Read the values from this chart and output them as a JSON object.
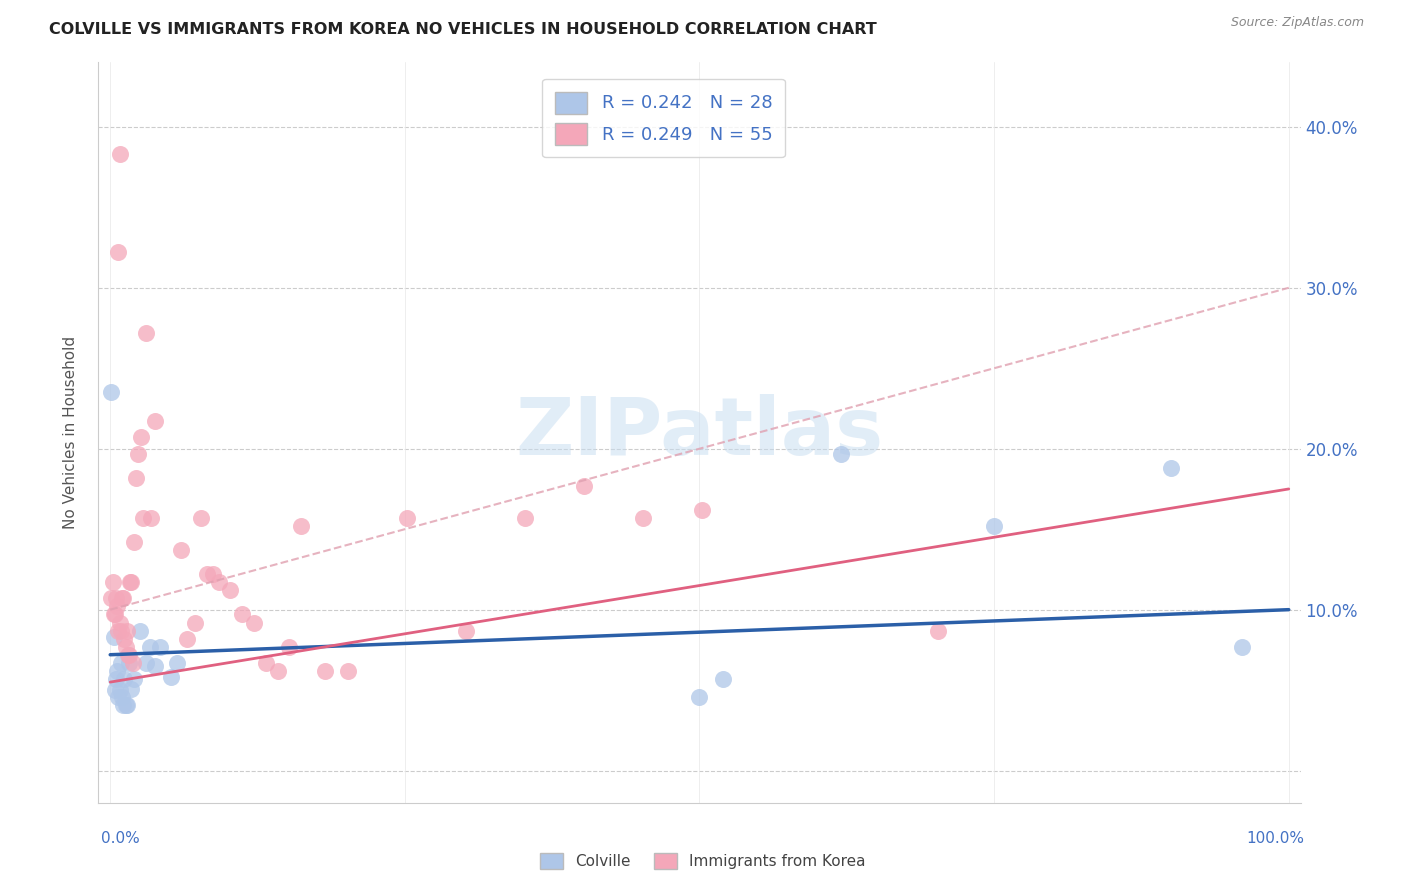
{
  "title": "COLVILLE VS IMMIGRANTS FROM KOREA NO VEHICLES IN HOUSEHOLD CORRELATION CHART",
  "source": "Source: ZipAtlas.com",
  "ylabel": "No Vehicles in Household",
  "watermark": "ZIPatlas",
  "colville_color": "#aec6e8",
  "korea_color": "#f4a7b9",
  "colville_line_color": "#2b5fa8",
  "korea_line_color": "#e06080",
  "korea_dash_color": "#e0a0b0",
  "xlim": [
    -0.01,
    1.01
  ],
  "ylim": [
    -0.02,
    0.44
  ],
  "colville_intercept": 0.072,
  "colville_slope": 0.028,
  "korea_solid_intercept": 0.055,
  "korea_solid_slope": 0.12,
  "korea_dash_intercept": 0.1,
  "korea_dash_slope": 0.2,
  "colville_points": [
    [
      0.001,
      0.235
    ],
    [
      0.003,
      0.083
    ],
    [
      0.004,
      0.05
    ],
    [
      0.005,
      0.057
    ],
    [
      0.006,
      0.062
    ],
    [
      0.007,
      0.046
    ],
    [
      0.008,
      0.05
    ],
    [
      0.009,
      0.067
    ],
    [
      0.01,
      0.046
    ],
    [
      0.011,
      0.041
    ],
    [
      0.012,
      0.057
    ],
    [
      0.013,
      0.041
    ],
    [
      0.014,
      0.041
    ],
    [
      0.016,
      0.067
    ],
    [
      0.018,
      0.051
    ],
    [
      0.02,
      0.057
    ],
    [
      0.025,
      0.087
    ],
    [
      0.03,
      0.067
    ],
    [
      0.034,
      0.077
    ],
    [
      0.038,
      0.065
    ],
    [
      0.042,
      0.077
    ],
    [
      0.052,
      0.058
    ],
    [
      0.057,
      0.067
    ],
    [
      0.5,
      0.046
    ],
    [
      0.52,
      0.057
    ],
    [
      0.62,
      0.197
    ],
    [
      0.75,
      0.152
    ],
    [
      0.9,
      0.188
    ],
    [
      0.96,
      0.077
    ]
  ],
  "korea_points": [
    [
      0.001,
      0.107
    ],
    [
      0.002,
      0.117
    ],
    [
      0.003,
      0.097
    ],
    [
      0.004,
      0.097
    ],
    [
      0.005,
      0.107
    ],
    [
      0.006,
      0.102
    ],
    [
      0.007,
      0.087
    ],
    [
      0.008,
      0.092
    ],
    [
      0.009,
      0.087
    ],
    [
      0.01,
      0.107
    ],
    [
      0.011,
      0.107
    ],
    [
      0.012,
      0.082
    ],
    [
      0.013,
      0.077
    ],
    [
      0.014,
      0.087
    ],
    [
      0.015,
      0.072
    ],
    [
      0.016,
      0.072
    ],
    [
      0.017,
      0.117
    ],
    [
      0.018,
      0.117
    ],
    [
      0.019,
      0.067
    ],
    [
      0.02,
      0.142
    ],
    [
      0.022,
      0.182
    ],
    [
      0.024,
      0.197
    ],
    [
      0.026,
      0.207
    ],
    [
      0.028,
      0.157
    ],
    [
      0.03,
      0.272
    ],
    [
      0.035,
      0.157
    ],
    [
      0.038,
      0.217
    ],
    [
      0.007,
      0.322
    ],
    [
      0.008,
      0.383
    ],
    [
      0.06,
      0.137
    ],
    [
      0.065,
      0.082
    ],
    [
      0.072,
      0.092
    ],
    [
      0.077,
      0.157
    ],
    [
      0.082,
      0.122
    ],
    [
      0.087,
      0.122
    ],
    [
      0.092,
      0.117
    ],
    [
      0.102,
      0.112
    ],
    [
      0.112,
      0.097
    ],
    [
      0.122,
      0.092
    ],
    [
      0.132,
      0.067
    ],
    [
      0.142,
      0.062
    ],
    [
      0.152,
      0.077
    ],
    [
      0.162,
      0.152
    ],
    [
      0.182,
      0.062
    ],
    [
      0.202,
      0.062
    ],
    [
      0.252,
      0.157
    ],
    [
      0.302,
      0.087
    ],
    [
      0.352,
      0.157
    ],
    [
      0.402,
      0.177
    ],
    [
      0.452,
      0.157
    ],
    [
      0.502,
      0.162
    ],
    [
      0.702,
      0.087
    ]
  ]
}
